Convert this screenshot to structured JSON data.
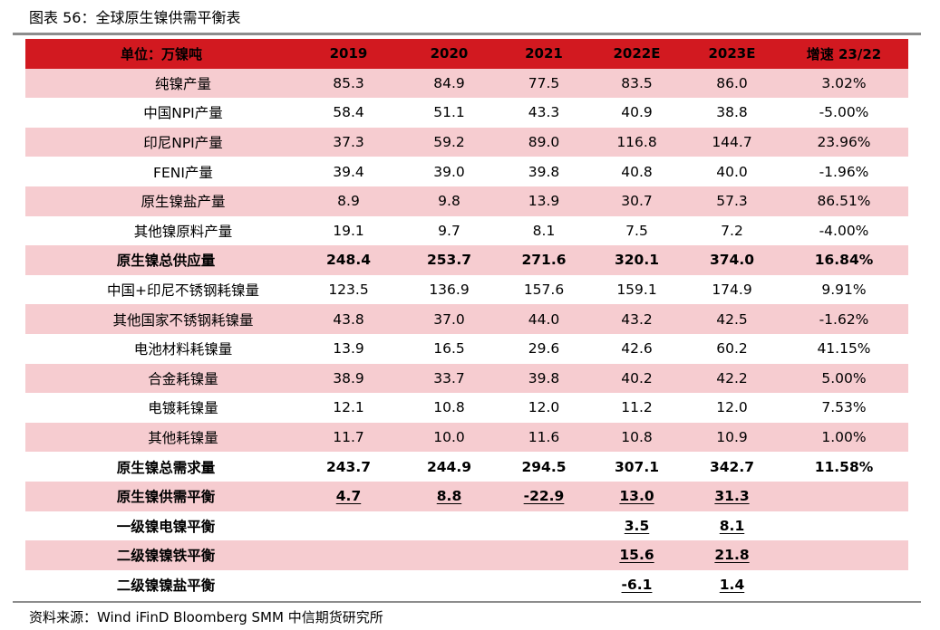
{
  "title": "图表 56：全球原生镍供需平衡表",
  "header": [
    "单位：万镍吨",
    "2019",
    "2020",
    "2021",
    "2022E",
    "2023E",
    "增速 23/22"
  ],
  "rows": [
    {
      "label": "纯镍产量",
      "values": [
        "85.3",
        "84.9",
        "77.5",
        "83.5",
        "86.0",
        "3.02%"
      ]
    },
    {
      "label": "中国NPI产量",
      "values": [
        "58.4",
        "51.1",
        "43.3",
        "40.9",
        "38.8",
        "-5.00%"
      ]
    },
    {
      "label": "印尼NPI产量",
      "values": [
        "37.3",
        "59.2",
        "89.0",
        "116.8",
        "144.7",
        "23.96%"
      ]
    },
    {
      "label": "FENI产量",
      "values": [
        "39.4",
        "39.0",
        "39.8",
        "40.8",
        "40.0",
        "-1.96%"
      ]
    },
    {
      "label": "原生镍盐产量",
      "values": [
        "8.9",
        "9.8",
        "13.9",
        "30.7",
        "57.3",
        "86.51%"
      ]
    },
    {
      "label": "其他镍原料产量",
      "values": [
        "19.1",
        "9.7",
        "8.1",
        "7.5",
        "7.2",
        "-4.00%"
      ]
    },
    {
      "label": "原生镍总供应量",
      "values": [
        "248.4",
        "253.7",
        "271.6",
        "320.1",
        "374.0",
        "16.84%"
      ]
    },
    {
      "label": "中国+印尼不锈钢耗镍量",
      "values": [
        "123.5",
        "136.9",
        "157.6",
        "159.1",
        "174.9",
        "9.91%"
      ]
    },
    {
      "label": "其他国家不锈钢耗镍量",
      "values": [
        "43.8",
        "37.0",
        "44.0",
        "43.2",
        "42.5",
        "-1.62%"
      ]
    },
    {
      "label": "电池材料耗镍量",
      "values": [
        "13.9",
        "16.5",
        "29.6",
        "42.6",
        "60.2",
        "41.15%"
      ]
    },
    {
      "label": "合金耗镍量",
      "values": [
        "38.9",
        "33.7",
        "39.8",
        "40.2",
        "42.2",
        "5.00%"
      ]
    },
    {
      "label": "电镀耗镍量",
      "values": [
        "12.1",
        "10.8",
        "12.0",
        "11.2",
        "12.0",
        "7.53%"
      ]
    },
    {
      "label": "其他耗镍量",
      "values": [
        "11.7",
        "10.0",
        "11.6",
        "10.8",
        "10.9",
        "1.00%"
      ]
    },
    {
      "label": "原生镍总需求量",
      "values": [
        "243.7",
        "244.9",
        "294.5",
        "307.1",
        "342.7",
        "11.58%"
      ]
    },
    {
      "label": "原生镍供需平衡",
      "values": [
        "4.7",
        "8.8",
        "-22.9",
        "13.0",
        "31.3",
        ""
      ]
    },
    {
      "label": "一级镍电镍平衡",
      "values": [
        "",
        "",
        "",
        "3.5",
        "8.1",
        ""
      ]
    },
    {
      "label": "二级镍镍铁平衡",
      "values": [
        "",
        "",
        "",
        "15.6",
        "21.8",
        ""
      ]
    },
    {
      "label": "二级镍镍盐平衡",
      "values": [
        "",
        "",
        "",
        "-6.1",
        "1.4",
        ""
      ]
    }
  ],
  "source": "资料来源：Wind iFinD Bloomberg SMM 中信期货研究所",
  "colors": {
    "header_bg": "#d21920",
    "band_pink": "#f6ccd0",
    "rule_gray": "#8c8c8c"
  }
}
